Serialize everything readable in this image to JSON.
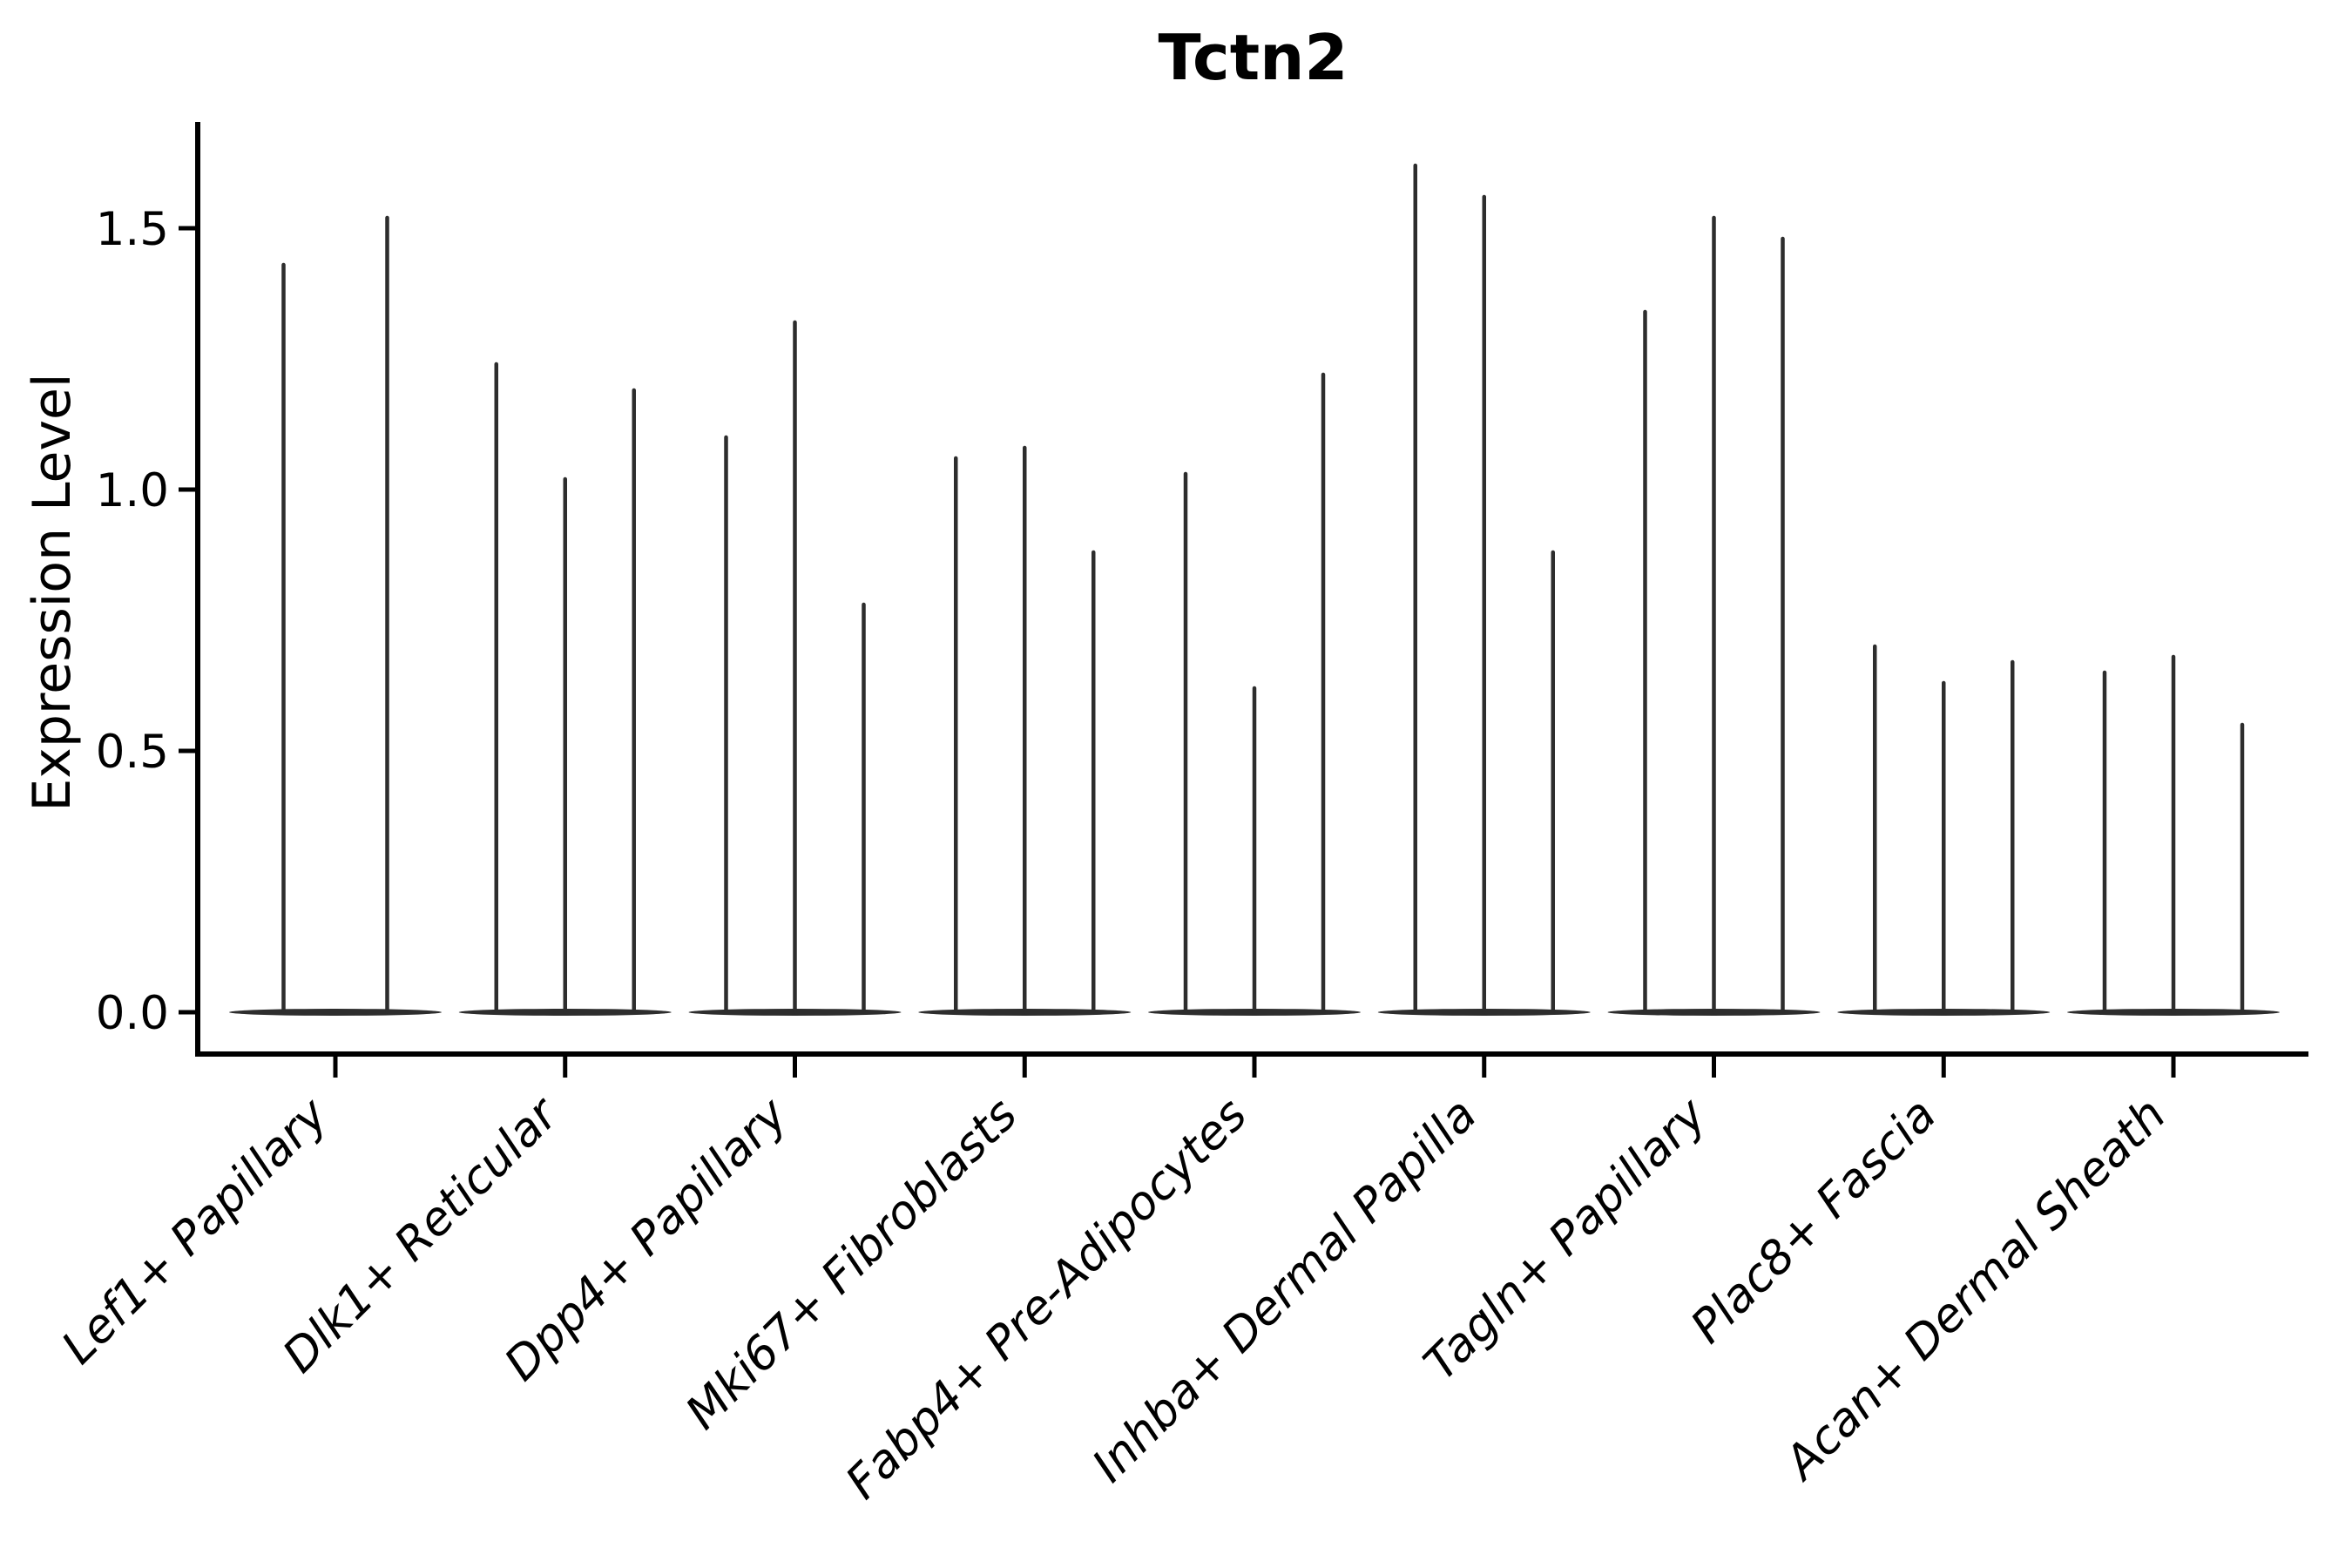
{
  "figure": {
    "title": "Tctn2",
    "y_axis_label": "Expression Level",
    "background_color": "#ffffff",
    "axis_color": "#000000",
    "violin_color": "#2d2d2d"
  },
  "chart_data": {
    "type": "violin",
    "title": "Tctn2",
    "xlabel": "",
    "ylabel": "Expression Level",
    "ylim": [
      -0.08,
      1.7
    ],
    "yticks": [
      0.0,
      0.5,
      1.0,
      1.5
    ],
    "ytick_labels": [
      "0.0",
      "0.5",
      "1.0",
      "1.5"
    ],
    "grid": false,
    "legend_position": "none",
    "categories": [
      "Lef1+ Papillary",
      "Dlk1+ Reticular",
      "Dpp4+ Papillary",
      "Mki67+ Fibroblasts",
      "Fabp4+ Pre-Adipocytes",
      "Inhba+ Dermal Papilla",
      "Tagln+ Papillary",
      "Plac8+ Fascia",
      "Acan+ Dermal Sheath"
    ],
    "violins": [
      {
        "category": "Lef1+ Papillary",
        "spike_peaks": [
          1.43,
          1.52
        ]
      },
      {
        "category": "Dlk1+ Reticular",
        "spike_peaks": [
          1.24,
          1.02,
          1.19
        ]
      },
      {
        "category": "Dpp4+ Papillary",
        "spike_peaks": [
          1.1,
          1.32,
          0.78
        ]
      },
      {
        "category": "Mki67+ Fibroblasts",
        "spike_peaks": [
          1.06,
          1.08,
          0.88
        ]
      },
      {
        "category": "Fabp4+ Pre-Adipocytes",
        "spike_peaks": [
          1.03,
          0.62,
          1.22
        ]
      },
      {
        "category": "Inhba+ Dermal Papilla",
        "spike_peaks": [
          1.62,
          1.56,
          0.88
        ]
      },
      {
        "category": "Tagln+ Papillary",
        "spike_peaks": [
          1.34,
          1.52,
          1.48
        ]
      },
      {
        "category": "Plac8+ Fascia",
        "spike_peaks": [
          0.7,
          0.63,
          0.67
        ]
      },
      {
        "category": "Acan+ Dermal Sheath",
        "spike_peaks": [
          0.65,
          0.68,
          0.55
        ]
      }
    ]
  }
}
